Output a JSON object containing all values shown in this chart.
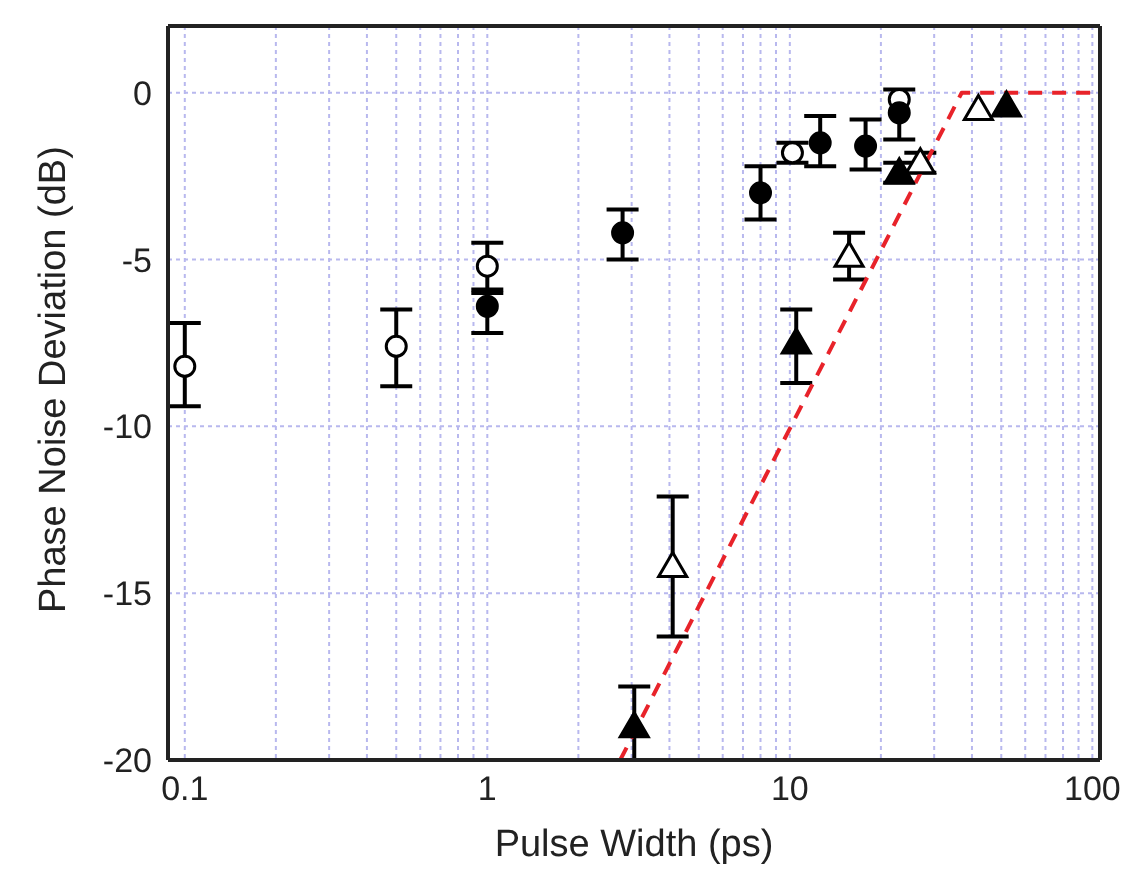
{
  "chart_data": {
    "type": "scatter",
    "xlabel": "Pulse Width (ps)",
    "ylabel": "Phase Noise Deviation (dB)",
    "log": "x",
    "grid": true,
    "xlim": [
      0.088,
      106
    ],
    "ylim": [
      -20,
      2
    ],
    "xticks": [
      0.1,
      {
        "value": 0.2,
        "label": null
      },
      {
        "value": 0.3,
        "label": null
      },
      {
        "value": 0.4,
        "label": null
      },
      {
        "value": 0.5,
        "label": null
      },
      {
        "value": 0.6,
        "label": null
      },
      {
        "value": 0.7,
        "label": null
      },
      {
        "value": 0.8,
        "label": null
      },
      {
        "value": 0.9,
        "label": null
      },
      1,
      {
        "value": 2,
        "label": null
      },
      {
        "value": 3,
        "label": null
      },
      {
        "value": 4,
        "label": null
      },
      {
        "value": 5,
        "label": null
      },
      {
        "value": 6,
        "label": null
      },
      {
        "value": 7,
        "label": null
      },
      {
        "value": 8,
        "label": null
      },
      {
        "value": 9,
        "label": null
      },
      10,
      {
        "value": 20,
        "label": null
      },
      {
        "value": 30,
        "label": null
      },
      {
        "value": 40,
        "label": null
      },
      {
        "value": 50,
        "label": null
      },
      {
        "value": 60,
        "label": null
      },
      {
        "value": 70,
        "label": null
      },
      {
        "value": 80,
        "label": null
      },
      {
        "value": 90,
        "label": null
      },
      100
    ],
    "yticks": [
      -20,
      -15,
      -10,
      -5,
      0
    ],
    "series": [
      {
        "marker": "circle",
        "color": "#ffffff",
        "x": [
          0.1,
          0.5,
          1.0,
          10.2,
          23
        ],
        "values": [
          -8.2,
          -7.6,
          -5.2,
          -1.8,
          -0.2
        ],
        "errors": [
          [
            -9.4,
            -6.9
          ],
          [
            -8.8,
            -6.5
          ],
          [
            -5.9,
            -4.5
          ],
          [
            -2.1,
            -1.5
          ],
          null
        ]
      },
      {
        "marker": "circle",
        "color": "#000000",
        "x": [
          1.0,
          2.8,
          8.0,
          12.6,
          17.8,
          23
        ],
        "values": [
          -6.4,
          -4.2,
          -3.0,
          -1.5,
          -1.6,
          -0.6
        ],
        "errors": [
          [
            -7.2,
            -6.0
          ],
          [
            -5.0,
            -3.5
          ],
          [
            -3.8,
            -2.2
          ],
          [
            -2.2,
            -0.7
          ],
          [
            -2.3,
            -0.8
          ],
          [
            -1.4,
            0.1
          ]
        ]
      },
      {
        "marker": "triangle",
        "color": "#ffffff",
        "x": [
          4.1,
          15.7,
          27,
          42
        ],
        "values": [
          -14.2,
          -4.9,
          -2.1,
          -0.5
        ],
        "errors": [
          [
            -16.3,
            -12.1
          ],
          [
            -5.6,
            -4.2
          ],
          [
            -2.4,
            -1.8
          ],
          null
        ]
      },
      {
        "marker": "triangle",
        "color": "#000000",
        "x": [
          3.06,
          10.5,
          23,
          52
        ],
        "values": [
          -19.0,
          -7.5,
          -2.4,
          -0.4
        ],
        "errors": [
          [
            -20,
            -17.8
          ],
          [
            -8.7,
            -6.5
          ],
          [
            -2.7,
            -2.1
          ],
          null
        ]
      },
      {
        "type": "line",
        "color": "#e8232a",
        "line_style": "dashed",
        "marker": "none",
        "x": [
          2.75,
          37,
          106
        ],
        "values": [
          -20,
          0,
          0
        ]
      }
    ]
  }
}
